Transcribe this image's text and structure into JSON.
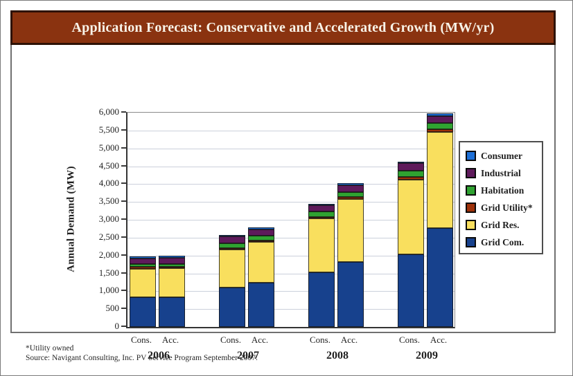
{
  "title_bar": {
    "text": "Application Forecast: Conservative and Accelerated Growth (MW/yr)"
  },
  "footnote": {
    "line1": "*Utility owned",
    "line2": "Source: Navigant Consulting, Inc. PV Service Program September 2007."
  },
  "colors": {
    "title_bar_bg": "#8A3310",
    "title_bar_border": "#2E1206",
    "title_text": "#F8F3E8",
    "panel_border": "#707070",
    "gridline": "#CBD0DB",
    "axis": "#333333"
  },
  "chart_data": {
    "type": "bar",
    "stacked": true,
    "title": "Application Forecast: Conservative and Accelerated Growth (MW/yr)",
    "ylabel": "Annual Demand (MW)",
    "ylim": [
      0,
      6000
    ],
    "ytick_step": 500,
    "grid": true,
    "legend_position": "right",
    "legend": [
      {
        "label": "Consumer",
        "color": "#1D6FD6"
      },
      {
        "label": "Industrial",
        "color": "#5E1A5B"
      },
      {
        "label": "Habitation",
        "color": "#2FA231"
      },
      {
        "label": "Grid Utility*",
        "color": "#9E3109"
      },
      {
        "label": "Grid Res.",
        "color": "#F9DF5E"
      },
      {
        "label": "Grid Com.",
        "color": "#17418D"
      }
    ],
    "years": [
      "2006",
      "2007",
      "2008",
      "2009"
    ],
    "scenario_labels": [
      "Cons.",
      "Acc."
    ],
    "stack_order_bottom_to_top": [
      "Grid Com.",
      "Grid Res.",
      "Grid Utility*",
      "Habitation",
      "Industrial",
      "Consumer"
    ],
    "bars": [
      {
        "year": "2006",
        "scenario": "Cons.",
        "values": {
          "Grid Com.": 825,
          "Grid Res.": 810,
          "Grid Utility*": 40,
          "Habitation": 90,
          "Industrial": 155,
          "Consumer": 50
        }
      },
      {
        "year": "2006",
        "scenario": "Acc.",
        "values": {
          "Grid Com.": 825,
          "Grid Res.": 815,
          "Grid Utility*": 40,
          "Habitation": 90,
          "Industrial": 160,
          "Consumer": 55
        }
      },
      {
        "year": "2007",
        "scenario": "Cons.",
        "values": {
          "Grid Com.": 1100,
          "Grid Res.": 1060,
          "Grid Utility*": 50,
          "Habitation": 140,
          "Industrial": 180,
          "Consumer": 50
        }
      },
      {
        "year": "2007",
        "scenario": "Acc.",
        "values": {
          "Grid Com.": 1230,
          "Grid Res.": 1145,
          "Grid Utility*": 45,
          "Habitation": 140,
          "Industrial": 170,
          "Consumer": 50
        }
      },
      {
        "year": "2008",
        "scenario": "Cons.",
        "values": {
          "Grid Com.": 1520,
          "Grid Res.": 1510,
          "Grid Utility*": 45,
          "Habitation": 150,
          "Industrial": 175,
          "Consumer": 50
        }
      },
      {
        "year": "2008",
        "scenario": "Acc.",
        "values": {
          "Grid Com.": 1820,
          "Grid Res.": 1760,
          "Grid Utility*": 60,
          "Habitation": 140,
          "Industrial": 195,
          "Consumer": 55
        }
      },
      {
        "year": "2009",
        "scenario": "Cons.",
        "values": {
          "Grid Com.": 2030,
          "Grid Res.": 2090,
          "Grid Utility*": 75,
          "Habitation": 180,
          "Industrial": 210,
          "Consumer": 50
        }
      },
      {
        "year": "2009",
        "scenario": "Acc.",
        "values": {
          "Grid Com.": 2770,
          "Grid Res.": 2680,
          "Grid Utility*": 80,
          "Habitation": 180,
          "Industrial": 190,
          "Consumer": 90
        }
      }
    ]
  }
}
